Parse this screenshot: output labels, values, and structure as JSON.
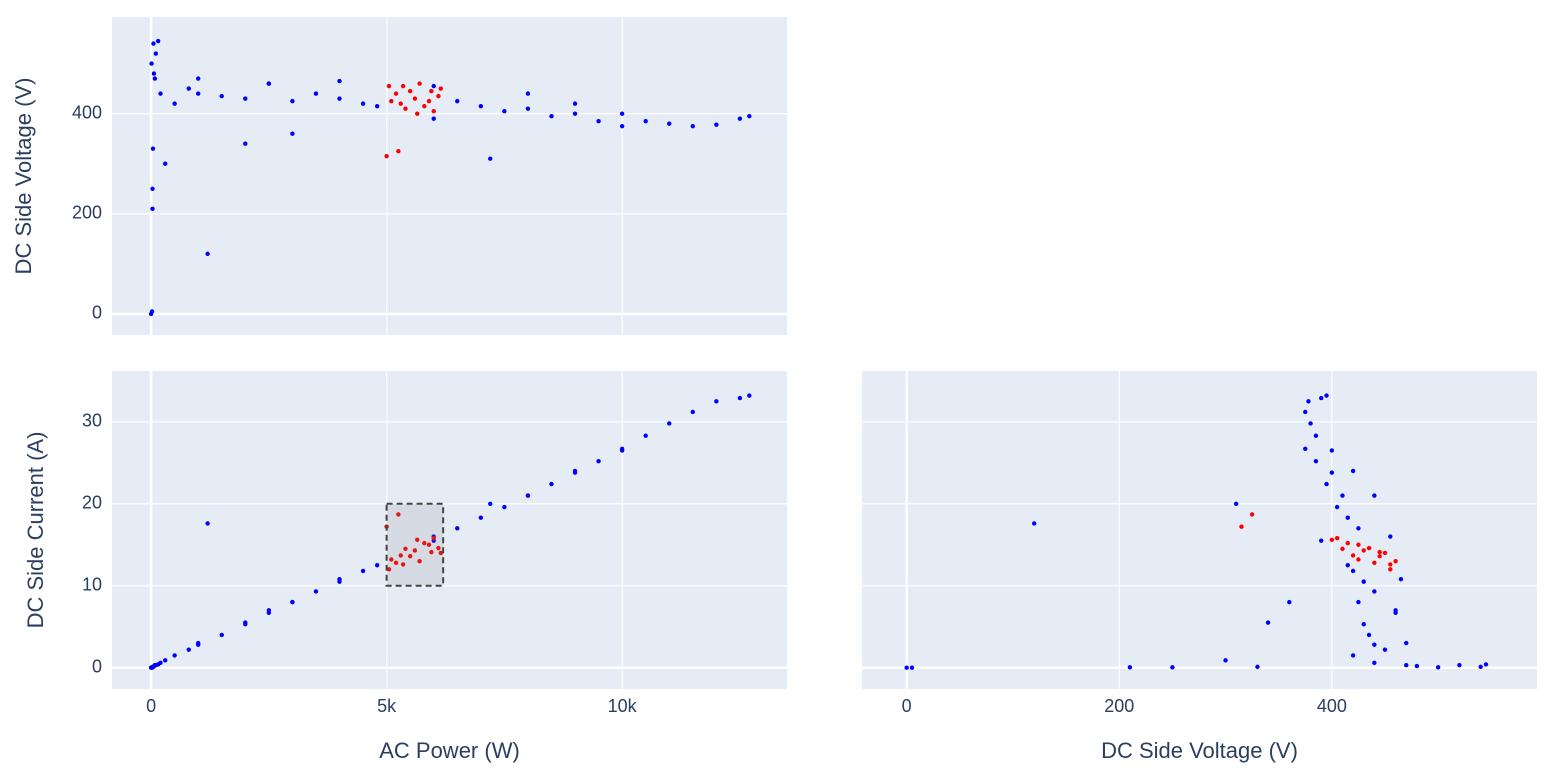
{
  "chart_data": {
    "type": "scatter_matrix",
    "dimensions": {
      "ac_power": {
        "label": "AC Power (W)",
        "lim": [
          -830,
          13500
        ],
        "ticks": [
          0,
          {
            "value": 5000,
            "label": "5k"
          },
          {
            "value": 10000,
            "label": "10k"
          }
        ]
      },
      "dc_voltage": {
        "label": "DC Side Voltage (V)",
        "lim": [
          -42,
          593
        ],
        "ticks": [
          0,
          200,
          400
        ]
      },
      "dc_current": {
        "label": "DC Side Current (A)",
        "lim": [
          -2.6,
          36.2
        ],
        "ticks": [
          0,
          10,
          20,
          30
        ]
      }
    },
    "grid": true,
    "series": [
      {
        "color": "#0000ff",
        "ac_power": [
          0,
          20,
          30,
          10,
          50,
          80,
          200,
          300,
          500,
          800,
          1000,
          1500,
          2000,
          2500,
          3000,
          3500,
          4000,
          4500,
          4800,
          6500,
          7000,
          7500,
          8000,
          8500,
          9000,
          9500,
          10000,
          10500,
          11000,
          11500,
          12000,
          12500,
          12700,
          30,
          40,
          60,
          100,
          150,
          1000,
          2500,
          2000,
          3000,
          6000,
          4000,
          8000,
          9000,
          10000,
          6000,
          1200,
          7200
        ],
        "dc_voltage": [
          0,
          5,
          210,
          500,
          540,
          470,
          440,
          300,
          420,
          450,
          440,
          435,
          430,
          460,
          425,
          440,
          430,
          420,
          415,
          425,
          415,
          405,
          410,
          395,
          400,
          385,
          375,
          385,
          380,
          375,
          378,
          390,
          395,
          250,
          330,
          480,
          520,
          545,
          470,
          460,
          340,
          360,
          455,
          465,
          440,
          420,
          400,
          390,
          120,
          310
        ],
        "dc_current": [
          0,
          0,
          0.05,
          0.05,
          0.1,
          0.3,
          0.6,
          0.9,
          1.5,
          2.2,
          2.8,
          4.0,
          5.3,
          6.7,
          8.0,
          9.3,
          10.5,
          11.8,
          12.5,
          17.0,
          18.3,
          19.6,
          21.0,
          22.4,
          23.8,
          25.2,
          26.7,
          28.3,
          29.8,
          31.2,
          32.5,
          32.9,
          33.2,
          0.05,
          0.1,
          0.2,
          0.3,
          0.4,
          3.0,
          7.0,
          5.5,
          8.0,
          16.0,
          10.8,
          21.0,
          24.0,
          26.5,
          15.5,
          17.6,
          20.0
        ]
      },
      {
        "color": "#ff0000",
        "ac_power": [
          5050,
          5200,
          5300,
          5400,
          5500,
          5600,
          5700,
          5800,
          5900,
          6000,
          6100,
          6150,
          5100,
          5350,
          5650,
          5950,
          5000,
          5250
        ],
        "dc_voltage": [
          455,
          440,
          420,
          410,
          445,
          430,
          460,
          415,
          425,
          405,
          435,
          450,
          425,
          455,
          400,
          445,
          315,
          325
        ],
        "dc_current": [
          12.0,
          12.8,
          13.7,
          14.5,
          13.6,
          14.3,
          13.0,
          15.2,
          15.0,
          15.8,
          14.6,
          14.0,
          13.2,
          12.6,
          15.6,
          14.1,
          17.2,
          18.7
        ]
      }
    ],
    "panels": [
      {
        "x": "ac_power",
        "y": "dc_voltage",
        "show_x": false,
        "show_y": true
      },
      {
        "x": "ac_power",
        "y": "dc_current",
        "show_x": true,
        "show_y": true,
        "selection": {
          "x0": 5000,
          "x1": 6200,
          "y0": 10,
          "y1": 20
        }
      },
      {
        "x": "dc_voltage",
        "y": "dc_current",
        "show_x": true,
        "show_y": false
      }
    ]
  }
}
